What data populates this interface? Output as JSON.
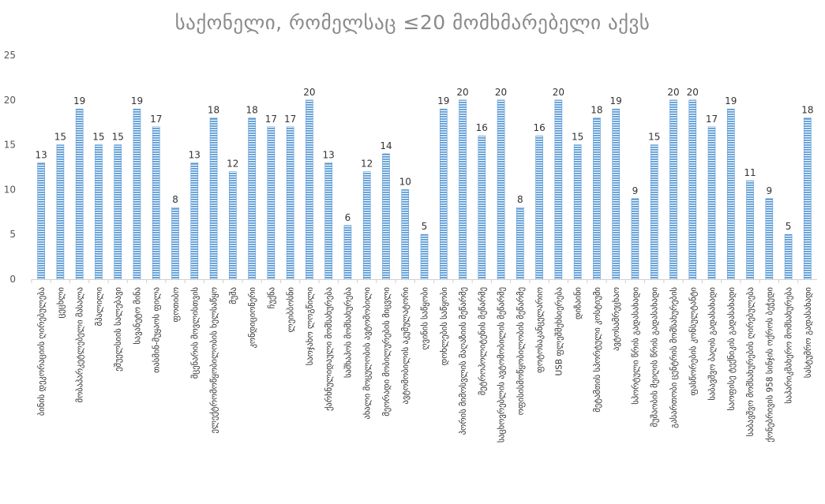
{
  "chart_data": {
    "type": "bar",
    "title": "საქონელი, რომელსაც ≤20 მომხმარებელი აქვს",
    "xlabel": "",
    "ylabel": "",
    "ylim": [
      0,
      25
    ],
    "yticks": [
      0,
      5,
      10,
      15,
      20,
      25
    ],
    "grid": false,
    "legend": "none",
    "bar_color": "#5b9bd5",
    "categories": [
      "ბინის დეკორაციის ღირებულება",
      "ცეცხლი",
      "მობაპარკეტლებელი მასალა",
      "მპალილი",
      "ეშუელსიის სალებავი",
      "სავანეტო მინა",
      "თასმინ-მუყაოს ფილა",
      "ფოთიბო",
      "მცენარის მოვლისთვის",
      "ელექტრომოწყობილობის ხელსაწყო",
      "მუშა",
      "კონდიციონერი",
      "ჩუქნა",
      "ლეიბბოსნი",
      "საოჯახო ლოგწილი",
      "ქარხნულიდაული მომსახურება",
      "საშხაპოს მომსახურება",
      "ახალი მოცულობის ავტომობილი",
      "მეორადი მობილურების მიცვლი",
      "ავტომობილის აკუმულატორი",
      "ღვინის საწყობი",
      "დოხლების საწყობი",
      "პორის მიმოსვლის მაღაზიის მეწარმე",
      "მეტროპოლიტენის მეწარმე",
      "საცხოვრებლის ავტომობილის მეწარმე",
      "ოფისისმოწყობილობის მეწარმე",
      "ფოტოსაკანცელარიო",
      "USB ფლეშმეხსიერება",
      "დიზაინი",
      "მეტამთის სპორტული კოსტიუმი",
      "ავტოსამრეცხაო",
      "სპორტული წრის გადასახადი",
      "მუშაობის მეიღის წრის გადასახადი",
      "გასართობი ცენტრის მომსახურების",
      "ფასწორების კონსულტანტი",
      "საბავშვო ბაღის გადასახადი",
      "საოფისე ტექნიკის გადასახადი",
      "საბავშვო მომსახურების ღირებულება",
      "ქონებრივის 958 სინჯის ოქროს ბეჭედი",
      "საპარიკმახერო მომსახურება",
      "სასტუმრო გადასახადი"
    ],
    "values": [
      13,
      15,
      19,
      15,
      15,
      19,
      17,
      8,
      13,
      18,
      12,
      18,
      17,
      17,
      20,
      13,
      6,
      12,
      14,
      10,
      5,
      19,
      20,
      16,
      20,
      8,
      16,
      20,
      15,
      18,
      19,
      9,
      15,
      20,
      20,
      17,
      19,
      11,
      9,
      5,
      18
    ]
  }
}
